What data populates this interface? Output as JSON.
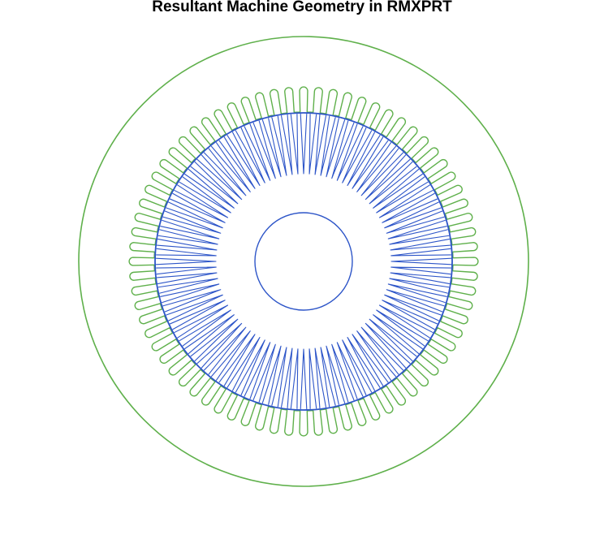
{
  "title": "Resultant Machine Geometry in RMXPRT",
  "colors": {
    "stator": "#5fb04b",
    "rotor": "#2d55c8",
    "background": "#ffffff",
    "title_text": "#000000"
  },
  "geometry": {
    "stator_slot_count": 72,
    "rotor_slot_count": 96
  }
}
